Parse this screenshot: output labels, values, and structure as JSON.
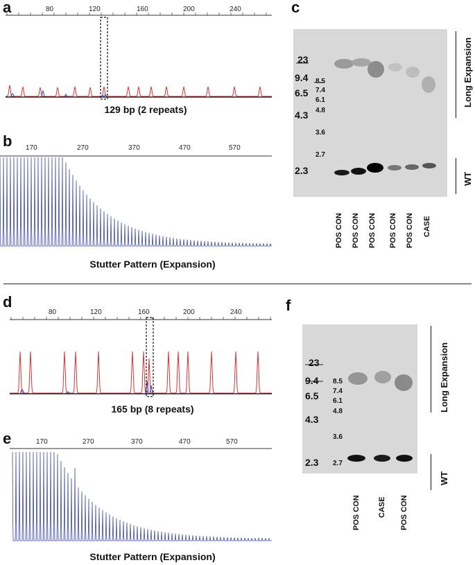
{
  "panels": {
    "a": {
      "label": "a",
      "ticks": [
        "80",
        "120",
        "160",
        "200",
        "240"
      ],
      "caption": "129 bp (2 repeats)",
      "peak_color": "#e03030",
      "secondary_color": "#3040b0"
    },
    "b": {
      "label": "b",
      "ticks": [
        "170",
        "270",
        "370",
        "470",
        "570"
      ],
      "caption": "Stutter Pattern (Expansion)",
      "trace_color": "#3a48a8"
    },
    "c": {
      "label": "c",
      "ladder_big": [
        "23",
        "9.4",
        "6.5",
        "4.3",
        "2.3"
      ],
      "ladder_small": [
        "8.5",
        "7.4",
        "6.1",
        "4.8",
        "3.6",
        "2.7"
      ],
      "lanes": [
        "POS CON",
        "POS CON",
        "POS CON",
        "POS CON",
        "POS CON",
        "CASE"
      ],
      "side_labels": [
        "Long Expansion",
        "WT"
      ]
    },
    "d": {
      "label": "d",
      "ticks": [
        "80",
        "120",
        "160",
        "200",
        "240"
      ],
      "caption": "165 bp (8 repeats)"
    },
    "e": {
      "label": "e",
      "ticks": [
        "170",
        "270",
        "370",
        "470",
        "570"
      ],
      "caption": "Stutter Pattern (Expansion)"
    },
    "f": {
      "label": "f",
      "ladder_big": [
        "23",
        "9.4",
        "6.5",
        "4.3",
        "2.3"
      ],
      "ladder_small": [
        "8.5",
        "7.4",
        "6.1",
        "4.8",
        "3.6",
        "2.7"
      ],
      "lanes": [
        "POS CON",
        "CASE",
        "POS CON"
      ],
      "side_labels": [
        "Long Expansion",
        "WT"
      ]
    }
  }
}
